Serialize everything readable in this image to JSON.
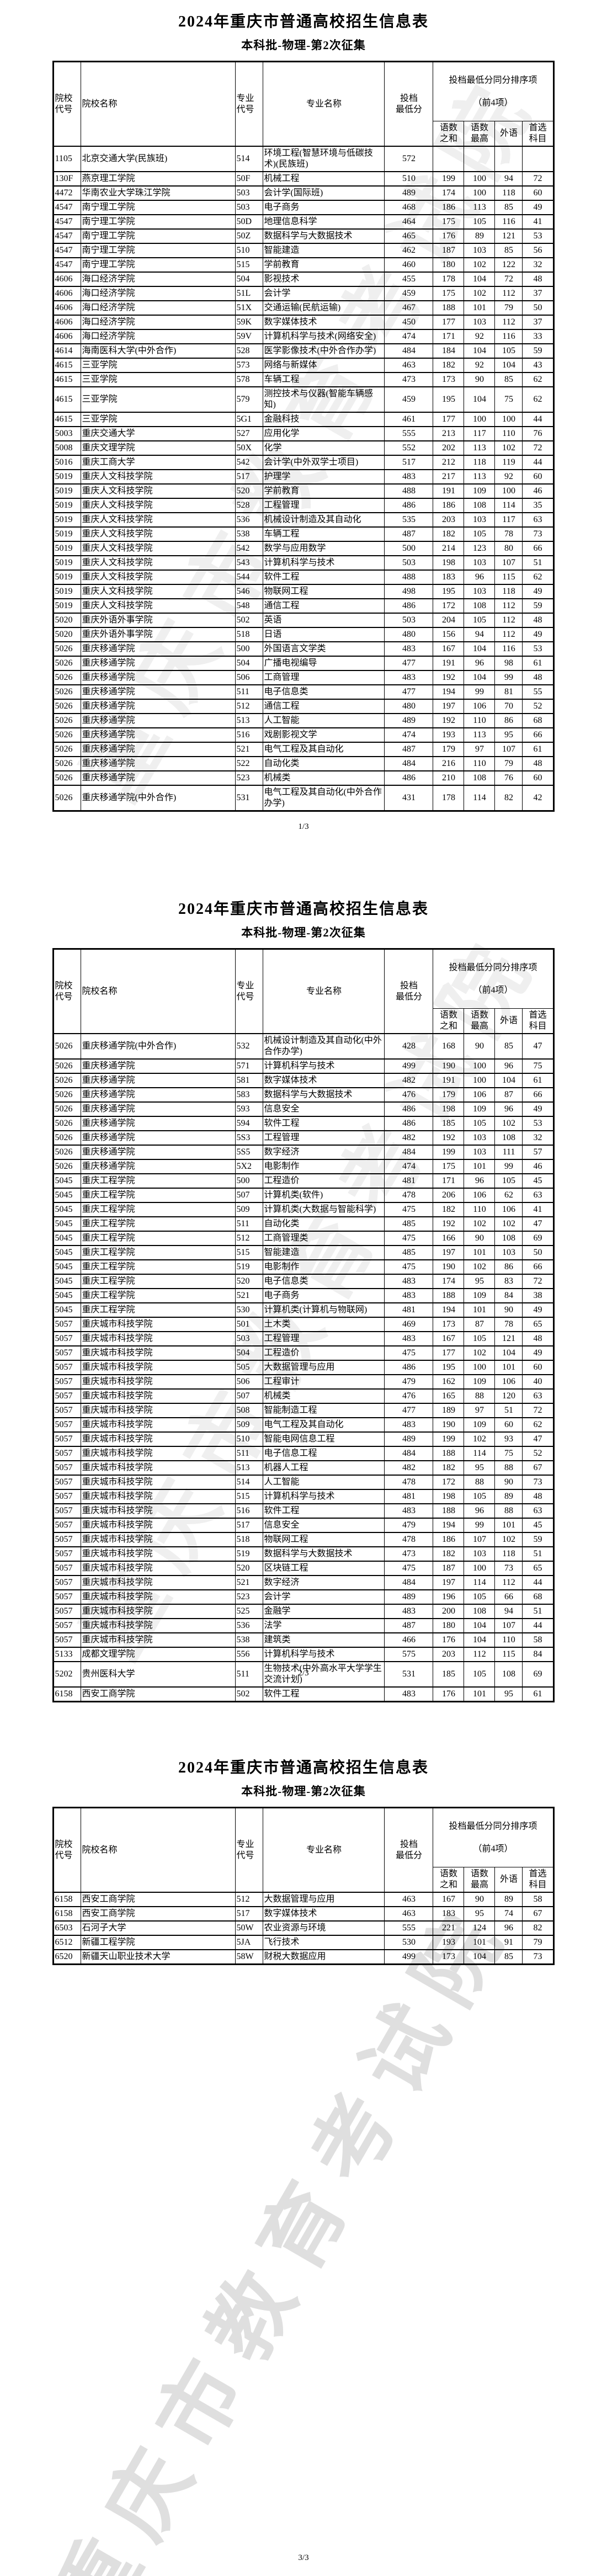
{
  "doc": {
    "title": "2024年重庆市普通高校招生信息表",
    "subtitle": "本科批-物理-第2次征集",
    "watermark": "重庆市教育考试院",
    "columns": {
      "college_code": "院校\n代号",
      "college_name": "院校名称",
      "major_code": "专业\n代号",
      "major_name": "专业名称",
      "min_score": "投档\n最低分",
      "tiebreak_title": "投档最低分同分排序项",
      "tiebreak_sub": "（前4项）",
      "sum_cm": "语数\n之和",
      "max_cm": "语数\n最高",
      "foreign": "外语",
      "subject": "首选\n科目"
    },
    "pages": [
      {
        "footer": "1/3",
        "rows": [
          [
            "1105",
            "北京交通大学(民族班)",
            "514",
            "环境工程(智慧环境与低碳技术)(民族班)",
            "572",
            "",
            "",
            "",
            ""
          ],
          [
            "130F",
            "燕京理工学院",
            "50F",
            "机械工程",
            "510",
            "199",
            "100",
            "94",
            "72"
          ],
          [
            "4472",
            "华南农业大学珠江学院",
            "503",
            "会计学(国际班)",
            "489",
            "174",
            "100",
            "118",
            "60"
          ],
          [
            "4547",
            "南宁理工学院",
            "503",
            "电子商务",
            "468",
            "186",
            "113",
            "85",
            "49"
          ],
          [
            "4547",
            "南宁理工学院",
            "50D",
            "地理信息科学",
            "464",
            "175",
            "105",
            "116",
            "41"
          ],
          [
            "4547",
            "南宁理工学院",
            "50Z",
            "数据科学与大数据技术",
            "465",
            "176",
            "89",
            "121",
            "53"
          ],
          [
            "4547",
            "南宁理工学院",
            "510",
            "智能建造",
            "462",
            "187",
            "103",
            "85",
            "56"
          ],
          [
            "4547",
            "南宁理工学院",
            "515",
            "学前教育",
            "460",
            "180",
            "102",
            "122",
            "32"
          ],
          [
            "4606",
            "海口经济学院",
            "504",
            "影视技术",
            "455",
            "178",
            "104",
            "72",
            "48"
          ],
          [
            "4606",
            "海口经济学院",
            "51L",
            "会计学",
            "459",
            "175",
            "102",
            "112",
            "37"
          ],
          [
            "4606",
            "海口经济学院",
            "51X",
            "交通运输(民航运输)",
            "467",
            "188",
            "101",
            "79",
            "50"
          ],
          [
            "4606",
            "海口经济学院",
            "59K",
            "数字媒体技术",
            "450",
            "177",
            "103",
            "112",
            "37"
          ],
          [
            "4606",
            "海口经济学院",
            "59V",
            "计算机科学与技术(网络安全)",
            "474",
            "171",
            "92",
            "116",
            "33"
          ],
          [
            "4614",
            "海南医科大学(中外合作)",
            "528",
            "医学影像技术(中外合作办学)",
            "484",
            "184",
            "104",
            "105",
            "59"
          ],
          [
            "4615",
            "三亚学院",
            "573",
            "网络与新媒体",
            "463",
            "182",
            "92",
            "104",
            "43"
          ],
          [
            "4615",
            "三亚学院",
            "578",
            "车辆工程",
            "473",
            "173",
            "90",
            "85",
            "62"
          ],
          [
            "4615",
            "三亚学院",
            "579",
            "测控技术与仪器(智能车辆感知)",
            "459",
            "195",
            "104",
            "75",
            "62"
          ],
          [
            "4615",
            "三亚学院",
            "5G1",
            "金融科技",
            "461",
            "177",
            "100",
            "100",
            "44"
          ],
          [
            "5003",
            "重庆交通大学",
            "527",
            "应用化学",
            "555",
            "213",
            "117",
            "110",
            "76"
          ],
          [
            "5008",
            "重庆文理学院",
            "50X",
            "化学",
            "552",
            "202",
            "113",
            "102",
            "72"
          ],
          [
            "5016",
            "重庆工商大学",
            "542",
            "会计学(中外双学士项目)",
            "517",
            "212",
            "118",
            "119",
            "44"
          ],
          [
            "5019",
            "重庆人文科技学院",
            "517",
            "护理学",
            "483",
            "217",
            "113",
            "92",
            "60"
          ],
          [
            "5019",
            "重庆人文科技学院",
            "520",
            "学前教育",
            "488",
            "191",
            "109",
            "100",
            "46"
          ],
          [
            "5019",
            "重庆人文科技学院",
            "528",
            "工程管理",
            "486",
            "186",
            "108",
            "114",
            "35"
          ],
          [
            "5019",
            "重庆人文科技学院",
            "536",
            "机械设计制造及其自动化",
            "535",
            "203",
            "103",
            "117",
            "63"
          ],
          [
            "5019",
            "重庆人文科技学院",
            "538",
            "车辆工程",
            "487",
            "182",
            "105",
            "78",
            "73"
          ],
          [
            "5019",
            "重庆人文科技学院",
            "542",
            "数学与应用数学",
            "500",
            "214",
            "123",
            "80",
            "66"
          ],
          [
            "5019",
            "重庆人文科技学院",
            "543",
            "计算机科学与技术",
            "503",
            "198",
            "103",
            "107",
            "51"
          ],
          [
            "5019",
            "重庆人文科技学院",
            "544",
            "软件工程",
            "488",
            "183",
            "96",
            "115",
            "62"
          ],
          [
            "5019",
            "重庆人文科技学院",
            "546",
            "物联网工程",
            "498",
            "195",
            "103",
            "118",
            "49"
          ],
          [
            "5019",
            "重庆人文科技学院",
            "548",
            "通信工程",
            "486",
            "172",
            "108",
            "112",
            "59"
          ],
          [
            "5020",
            "重庆外语外事学院",
            "502",
            "英语",
            "503",
            "204",
            "105",
            "112",
            "48"
          ],
          [
            "5020",
            "重庆外语外事学院",
            "518",
            "日语",
            "480",
            "156",
            "94",
            "112",
            "49"
          ],
          [
            "5026",
            "重庆移通学院",
            "500",
            "外国语言文学类",
            "483",
            "167",
            "104",
            "116",
            "53"
          ],
          [
            "5026",
            "重庆移通学院",
            "504",
            "广播电视编导",
            "477",
            "191",
            "96",
            "98",
            "61"
          ],
          [
            "5026",
            "重庆移通学院",
            "506",
            "工商管理",
            "483",
            "192",
            "104",
            "99",
            "48"
          ],
          [
            "5026",
            "重庆移通学院",
            "511",
            "电子信息类",
            "477",
            "194",
            "99",
            "81",
            "55"
          ],
          [
            "5026",
            "重庆移通学院",
            "512",
            "通信工程",
            "480",
            "197",
            "106",
            "70",
            "52"
          ],
          [
            "5026",
            "重庆移通学院",
            "513",
            "人工智能",
            "489",
            "192",
            "110",
            "86",
            "68"
          ],
          [
            "5026",
            "重庆移通学院",
            "516",
            "戏剧影视文学",
            "474",
            "193",
            "113",
            "95",
            "66"
          ],
          [
            "5026",
            "重庆移通学院",
            "521",
            "电气工程及其自动化",
            "487",
            "179",
            "97",
            "107",
            "61"
          ],
          [
            "5026",
            "重庆移通学院",
            "522",
            "自动化类",
            "484",
            "216",
            "110",
            "79",
            "48"
          ],
          [
            "5026",
            "重庆移通学院",
            "523",
            "机械类",
            "486",
            "210",
            "108",
            "76",
            "60"
          ],
          [
            "5026",
            "重庆移通学院(中外合作)",
            "531",
            "电气工程及其自动化(中外合作办学)",
            "431",
            "178",
            "114",
            "82",
            "42"
          ]
        ]
      },
      {
        "footer": "2/3",
        "rows": [
          [
            "5026",
            "重庆移通学院(中外合作)",
            "532",
            "机械设计制造及其自动化(中外合作办学)",
            "428",
            "168",
            "90",
            "85",
            "47"
          ],
          [
            "5026",
            "重庆移通学院",
            "571",
            "计算机科学与技术",
            "499",
            "190",
            "100",
            "96",
            "75"
          ],
          [
            "5026",
            "重庆移通学院",
            "581",
            "数字媒体技术",
            "482",
            "191",
            "100",
            "104",
            "61"
          ],
          [
            "5026",
            "重庆移通学院",
            "583",
            "数据科学与大数据技术",
            "476",
            "179",
            "106",
            "87",
            "66"
          ],
          [
            "5026",
            "重庆移通学院",
            "593",
            "信息安全",
            "486",
            "198",
            "109",
            "96",
            "49"
          ],
          [
            "5026",
            "重庆移通学院",
            "594",
            "软件工程",
            "486",
            "185",
            "105",
            "102",
            "53"
          ],
          [
            "5026",
            "重庆移通学院",
            "5S3",
            "工程管理",
            "482",
            "192",
            "103",
            "108",
            "32"
          ],
          [
            "5026",
            "重庆移通学院",
            "5S5",
            "数字经济",
            "484",
            "199",
            "103",
            "111",
            "57"
          ],
          [
            "5026",
            "重庆移通学院",
            "5X2",
            "电影制作",
            "474",
            "175",
            "101",
            "99",
            "46"
          ],
          [
            "5045",
            "重庆工程学院",
            "500",
            "工程造价",
            "481",
            "171",
            "96",
            "105",
            "45"
          ],
          [
            "5045",
            "重庆工程学院",
            "507",
            "计算机类(软件)",
            "478",
            "206",
            "106",
            "62",
            "63"
          ],
          [
            "5045",
            "重庆工程学院",
            "509",
            "计算机类(大数据与智能科学)",
            "475",
            "182",
            "110",
            "106",
            "41"
          ],
          [
            "5045",
            "重庆工程学院",
            "511",
            "自动化类",
            "485",
            "192",
            "102",
            "102",
            "47"
          ],
          [
            "5045",
            "重庆工程学院",
            "512",
            "工商管理类",
            "475",
            "166",
            "90",
            "108",
            "69"
          ],
          [
            "5045",
            "重庆工程学院",
            "515",
            "智能建造",
            "485",
            "197",
            "101",
            "103",
            "50"
          ],
          [
            "5045",
            "重庆工程学院",
            "519",
            "电影制作",
            "475",
            "190",
            "102",
            "86",
            "66"
          ],
          [
            "5045",
            "重庆工程学院",
            "520",
            "电子信息类",
            "483",
            "174",
            "95",
            "83",
            "72"
          ],
          [
            "5045",
            "重庆工程学院",
            "521",
            "电子商务",
            "483",
            "188",
            "109",
            "84",
            "38"
          ],
          [
            "5045",
            "重庆工程学院",
            "530",
            "计算机类(计算机与物联网)",
            "481",
            "194",
            "101",
            "90",
            "49"
          ],
          [
            "5057",
            "重庆城市科技学院",
            "501",
            "土木类",
            "469",
            "173",
            "87",
            "78",
            "65"
          ],
          [
            "5057",
            "重庆城市科技学院",
            "503",
            "工程管理",
            "483",
            "167",
            "105",
            "121",
            "48"
          ],
          [
            "5057",
            "重庆城市科技学院",
            "504",
            "工程造价",
            "475",
            "177",
            "102",
            "104",
            "49"
          ],
          [
            "5057",
            "重庆城市科技学院",
            "505",
            "大数据管理与应用",
            "486",
            "195",
            "100",
            "101",
            "60"
          ],
          [
            "5057",
            "重庆城市科技学院",
            "506",
            "工程审计",
            "479",
            "162",
            "109",
            "106",
            "40"
          ],
          [
            "5057",
            "重庆城市科技学院",
            "507",
            "机械类",
            "476",
            "165",
            "88",
            "120",
            "63"
          ],
          [
            "5057",
            "重庆城市科技学院",
            "508",
            "智能制造工程",
            "477",
            "189",
            "97",
            "51",
            "72"
          ],
          [
            "5057",
            "重庆城市科技学院",
            "509",
            "电气工程及其自动化",
            "483",
            "190",
            "109",
            "60",
            "62"
          ],
          [
            "5057",
            "重庆城市科技学院",
            "510",
            "智能电网信息工程",
            "489",
            "199",
            "102",
            "93",
            "47"
          ],
          [
            "5057",
            "重庆城市科技学院",
            "511",
            "电子信息工程",
            "484",
            "188",
            "114",
            "75",
            "52"
          ],
          [
            "5057",
            "重庆城市科技学院",
            "513",
            "机器人工程",
            "482",
            "182",
            "95",
            "88",
            "67"
          ],
          [
            "5057",
            "重庆城市科技学院",
            "514",
            "人工智能",
            "478",
            "172",
            "88",
            "90",
            "73"
          ],
          [
            "5057",
            "重庆城市科技学院",
            "515",
            "计算机科学与技术",
            "481",
            "198",
            "105",
            "89",
            "48"
          ],
          [
            "5057",
            "重庆城市科技学院",
            "516",
            "软件工程",
            "483",
            "188",
            "96",
            "88",
            "63"
          ],
          [
            "5057",
            "重庆城市科技学院",
            "517",
            "信息安全",
            "479",
            "194",
            "99",
            "101",
            "45"
          ],
          [
            "5057",
            "重庆城市科技学院",
            "518",
            "物联网工程",
            "478",
            "186",
            "107",
            "102",
            "59"
          ],
          [
            "5057",
            "重庆城市科技学院",
            "519",
            "数据科学与大数据技术",
            "473",
            "182",
            "103",
            "118",
            "51"
          ],
          [
            "5057",
            "重庆城市科技学院",
            "520",
            "区块链工程",
            "475",
            "187",
            "100",
            "73",
            "65"
          ],
          [
            "5057",
            "重庆城市科技学院",
            "521",
            "数字经济",
            "484",
            "197",
            "114",
            "112",
            "44"
          ],
          [
            "5057",
            "重庆城市科技学院",
            "523",
            "会计学",
            "489",
            "196",
            "105",
            "66",
            "68"
          ],
          [
            "5057",
            "重庆城市科技学院",
            "525",
            "金融学",
            "483",
            "200",
            "108",
            "94",
            "51"
          ],
          [
            "5057",
            "重庆城市科技学院",
            "536",
            "法学",
            "487",
            "180",
            "104",
            "107",
            "44"
          ],
          [
            "5057",
            "重庆城市科技学院",
            "538",
            "建筑类",
            "466",
            "176",
            "104",
            "110",
            "58"
          ],
          [
            "5133",
            "成都文理学院",
            "556",
            "计算机科学与技术",
            "575",
            "203",
            "112",
            "115",
            "84"
          ],
          [
            "5202",
            "贵州医科大学",
            "511",
            "生物技术(中外高水平大学学生交流计划)",
            "531",
            "185",
            "105",
            "108",
            "69"
          ],
          [
            "6158",
            "西安工商学院",
            "502",
            "软件工程",
            "483",
            "176",
            "101",
            "95",
            "61"
          ]
        ]
      },
      {
        "footer": "3/3",
        "rows": [
          [
            "6158",
            "西安工商学院",
            "512",
            "大数据管理与应用",
            "463",
            "167",
            "90",
            "89",
            "58"
          ],
          [
            "6158",
            "西安工商学院",
            "517",
            "数字媒体技术",
            "463",
            "183",
            "95",
            "74",
            "67"
          ],
          [
            "6503",
            "石河子大学",
            "50W",
            "农业资源与环境",
            "555",
            "221",
            "124",
            "96",
            "82"
          ],
          [
            "6512",
            "新疆工程学院",
            "5JA",
            "飞行技术",
            "530",
            "193",
            "101",
            "91",
            "79"
          ],
          [
            "6520",
            "新疆天山职业技术大学",
            "58W",
            "财税大数据应用",
            "499",
            "173",
            "104",
            "85",
            "73"
          ]
        ]
      }
    ]
  }
}
